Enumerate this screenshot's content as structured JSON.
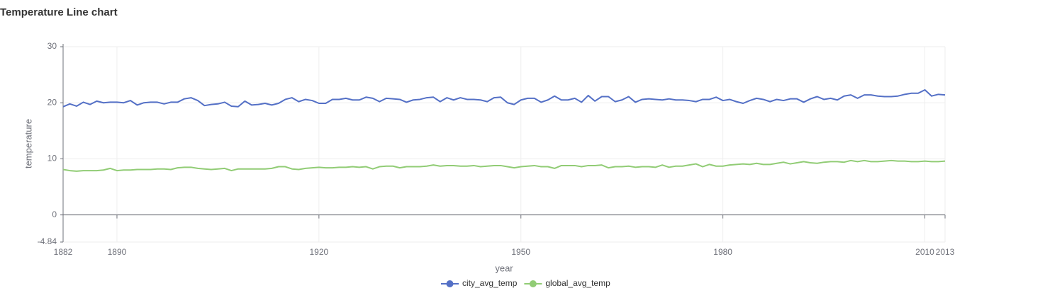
{
  "chart_data": {
    "type": "line",
    "title": "Temperature Line chart",
    "xlabel": "year",
    "ylabel": "temperature",
    "x": [
      1882,
      1883,
      1884,
      1885,
      1886,
      1887,
      1888,
      1889,
      1890,
      1891,
      1892,
      1893,
      1894,
      1895,
      1896,
      1897,
      1898,
      1899,
      1900,
      1901,
      1902,
      1903,
      1904,
      1905,
      1906,
      1907,
      1908,
      1909,
      1910,
      1911,
      1912,
      1913,
      1914,
      1915,
      1916,
      1917,
      1918,
      1919,
      1920,
      1921,
      1922,
      1923,
      1924,
      1925,
      1926,
      1927,
      1928,
      1929,
      1930,
      1931,
      1932,
      1933,
      1934,
      1935,
      1936,
      1937,
      1938,
      1939,
      1940,
      1941,
      1942,
      1943,
      1944,
      1945,
      1946,
      1947,
      1948,
      1949,
      1950,
      1951,
      1952,
      1953,
      1954,
      1955,
      1956,
      1957,
      1958,
      1959,
      1960,
      1961,
      1962,
      1963,
      1964,
      1965,
      1966,
      1967,
      1968,
      1969,
      1970,
      1971,
      1972,
      1973,
      1974,
      1975,
      1976,
      1977,
      1978,
      1979,
      1980,
      1981,
      1982,
      1983,
      1984,
      1985,
      1986,
      1987,
      1988,
      1989,
      1990,
      1991,
      1992,
      1993,
      1994,
      1995,
      1996,
      1997,
      1998,
      1999,
      2000,
      2001,
      2002,
      2003,
      2004,
      2005,
      2006,
      2007,
      2008,
      2009,
      2010,
      2011,
      2012,
      2013
    ],
    "series": [
      {
        "name": "city_avg_temp",
        "color": "#5470c6",
        "values": [
          19.3,
          19.8,
          19.4,
          20.1,
          19.7,
          20.3,
          20.0,
          20.1,
          20.1,
          20.0,
          20.4,
          19.6,
          20.0,
          20.1,
          20.1,
          19.8,
          20.1,
          20.1,
          20.7,
          20.9,
          20.4,
          19.5,
          19.7,
          19.8,
          20.1,
          19.4,
          19.3,
          20.3,
          19.6,
          19.7,
          19.9,
          19.6,
          19.9,
          20.6,
          20.9,
          20.2,
          20.6,
          20.4,
          19.9,
          19.9,
          20.6,
          20.6,
          20.8,
          20.5,
          20.5,
          21.0,
          20.8,
          20.2,
          20.8,
          20.7,
          20.6,
          20.1,
          20.5,
          20.6,
          20.9,
          21.0,
          20.2,
          20.9,
          20.5,
          20.9,
          20.6,
          20.6,
          20.5,
          20.2,
          20.9,
          21.0,
          20.0,
          19.7,
          20.5,
          20.8,
          20.8,
          20.1,
          20.5,
          21.2,
          20.5,
          20.5,
          20.8,
          20.1,
          21.3,
          20.3,
          21.1,
          21.1,
          20.2,
          20.5,
          21.1,
          20.1,
          20.6,
          20.7,
          20.6,
          20.5,
          20.7,
          20.5,
          20.5,
          20.4,
          20.2,
          20.6,
          20.6,
          21.0,
          20.4,
          20.6,
          20.2,
          19.9,
          20.4,
          20.8,
          20.6,
          20.2,
          20.6,
          20.4,
          20.7,
          20.7,
          20.1,
          20.7,
          21.1,
          20.6,
          20.8,
          20.5,
          21.2,
          21.4,
          20.8,
          21.4,
          21.4,
          21.2,
          21.1,
          21.1,
          21.2,
          21.5,
          21.7,
          21.7,
          22.3,
          21.2,
          21.5,
          21.4
        ]
      },
      {
        "name": "global_avg_temp",
        "color": "#91cc75",
        "values": [
          8.1,
          7.9,
          7.8,
          7.9,
          7.9,
          7.9,
          8.0,
          8.3,
          7.9,
          8.0,
          8.0,
          8.1,
          8.1,
          8.1,
          8.2,
          8.2,
          8.1,
          8.4,
          8.5,
          8.5,
          8.3,
          8.2,
          8.1,
          8.2,
          8.3,
          7.9,
          8.2,
          8.2,
          8.2,
          8.2,
          8.2,
          8.3,
          8.6,
          8.6,
          8.2,
          8.1,
          8.3,
          8.4,
          8.5,
          8.4,
          8.4,
          8.5,
          8.5,
          8.6,
          8.5,
          8.6,
          8.2,
          8.6,
          8.7,
          8.7,
          8.4,
          8.6,
          8.6,
          8.6,
          8.7,
          8.9,
          8.7,
          8.8,
          8.8,
          8.7,
          8.7,
          8.8,
          8.6,
          8.7,
          8.8,
          8.8,
          8.6,
          8.4,
          8.6,
          8.7,
          8.8,
          8.6,
          8.6,
          8.3,
          8.8,
          8.8,
          8.8,
          8.6,
          8.8,
          8.8,
          8.9,
          8.4,
          8.6,
          8.6,
          8.7,
          8.5,
          8.6,
          8.6,
          8.5,
          8.9,
          8.5,
          8.7,
          8.7,
          8.9,
          9.1,
          8.6,
          9.0,
          8.7,
          8.7,
          8.9,
          9.0,
          9.1,
          9.0,
          9.2,
          9.0,
          9.0,
          9.2,
          9.4,
          9.1,
          9.3,
          9.5,
          9.3,
          9.2,
          9.4,
          9.5,
          9.5,
          9.4,
          9.7,
          9.5,
          9.7,
          9.5,
          9.5,
          9.6,
          9.7,
          9.6,
          9.6,
          9.5,
          9.5,
          9.6,
          9.5,
          9.5,
          9.6
        ]
      }
    ],
    "xlim": [
      1882,
      2013
    ],
    "xticks": [
      1882,
      1890,
      1920,
      1950,
      1980,
      2010,
      2013
    ],
    "ylim": [
      -4.84,
      30
    ],
    "yticks": [
      -4.84,
      0,
      10,
      20,
      30
    ],
    "grid": true,
    "legend": "bottom"
  }
}
